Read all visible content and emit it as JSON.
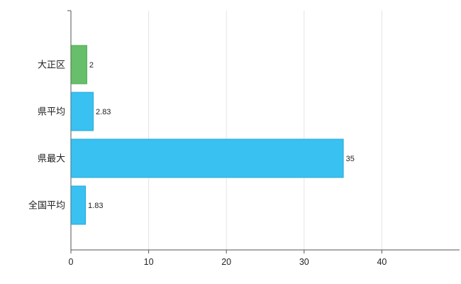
{
  "chart_data": {
    "type": "bar",
    "orientation": "horizontal",
    "title": "",
    "xlabel": "",
    "ylabel": "",
    "categories": [
      "大正区",
      "県平均",
      "県最大",
      "全国平均"
    ],
    "values": [
      2,
      2.83,
      35,
      1.83
    ],
    "value_labels": [
      "2",
      "2.83",
      "35",
      "1.83"
    ],
    "bar_colors": [
      "#67bf6b",
      "#38c1f1",
      "#38c1f1",
      "#38c1f1"
    ],
    "bar_border_colors": [
      "#4da551",
      "#28a8d8",
      "#28a8d8",
      "#28a8d8"
    ],
    "x_ticks": [
      0,
      10,
      20,
      30,
      40
    ],
    "xlim": [
      0,
      50
    ],
    "grid": true,
    "legend": "none",
    "background_color": "#ffffff",
    "axis_color": "#555555",
    "grid_color": "#e4e4e4",
    "label_color": "#222222"
  }
}
